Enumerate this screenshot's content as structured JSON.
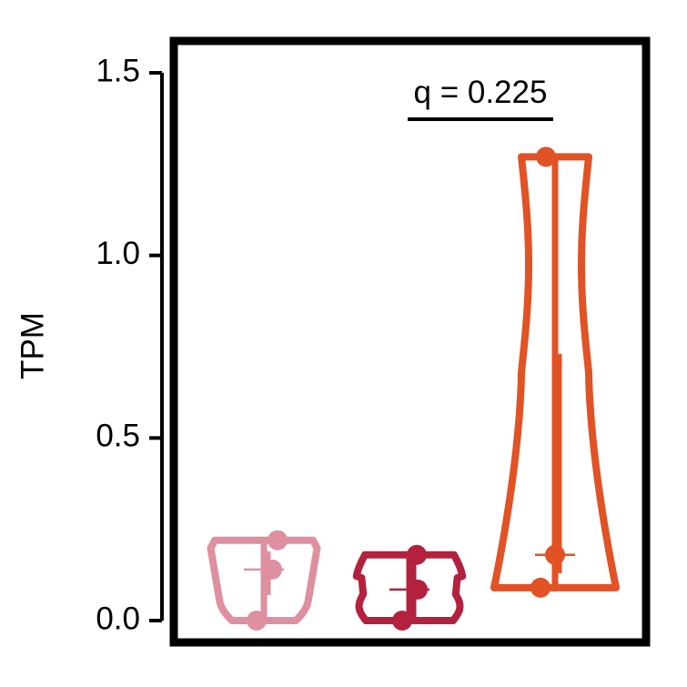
{
  "chart_data": {
    "type": "violin",
    "title": "",
    "xlabel": "",
    "ylabel": "TPM",
    "ylim": [
      0,
      1.5
    ],
    "y_ticks": [
      "0.0",
      "0.5",
      "1.0",
      "1.5"
    ],
    "y_tick_values": [
      0,
      0.5,
      1.0,
      1.5
    ],
    "grid": false,
    "legend": "none",
    "groups": [
      {
        "color": "#de8fa0",
        "min": 0.0,
        "max": 0.22,
        "q1": 0.07,
        "q3": 0.19,
        "mean": 0.14,
        "points": [
          0.0,
          0.14,
          0.22
        ]
      },
      {
        "color": "#b3213e",
        "min": 0.0,
        "max": 0.18,
        "q1": 0.0,
        "q3": 0.17,
        "mean": 0.085,
        "points": [
          0.0,
          0.085,
          0.18
        ]
      },
      {
        "color": "#e15225",
        "min": 0.09,
        "max": 1.27,
        "q1": 0.13,
        "q3": 0.73,
        "mean": 0.18,
        "points": [
          0.09,
          0.18,
          1.27
        ]
      }
    ],
    "annotations": [
      {
        "text": "q = 0.225",
        "between_groups": [
          2,
          3
        ]
      }
    ]
  }
}
